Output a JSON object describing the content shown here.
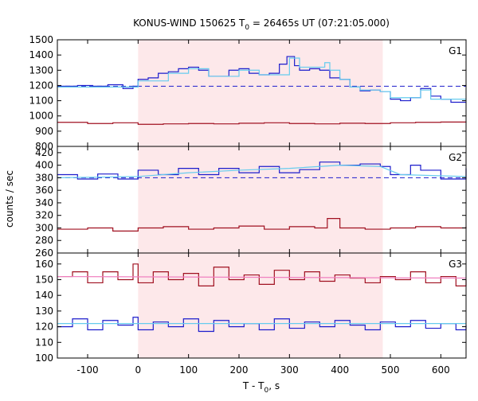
{
  "title": {
    "prefix": "KONUS-WIND 150625 T",
    "subscript": "0",
    "suffix": " = 26465s UT (07:21:05.000)"
  },
  "ylabel": "counts / sec",
  "xlabel": {
    "prefix": "T - T",
    "subscript": "0",
    "suffix": ", s"
  },
  "colors": {
    "blue": "#1c1ccc",
    "red": "#a01020",
    "cyan_fit": "#66ccee",
    "pink_fit": "#f080c0",
    "highlight": "#fde8ea"
  },
  "chart_data": {
    "type": "line",
    "x_range": [
      -160,
      650
    ],
    "x_ticks": [
      -100,
      0,
      100,
      200,
      300,
      400,
      500,
      600
    ],
    "highlight_interval": [
      0,
      485
    ],
    "panels": [
      {
        "label": "G1",
        "ylim": [
          800,
          1500
        ],
        "yticks": [
          800,
          900,
          1000,
          1100,
          1200,
          1300,
          1400,
          1500
        ],
        "background_level": 1195,
        "series": [
          {
            "color": "blue",
            "step": true,
            "points": [
              [
                -160,
                1195
              ],
              [
                -120,
                1200
              ],
              [
                -90,
                1195
              ],
              [
                -60,
                1205
              ],
              [
                -30,
                1180
              ],
              [
                -10,
                1195
              ],
              [
                0,
                1240
              ],
              [
                20,
                1250
              ],
              [
                40,
                1280
              ],
              [
                60,
                1290
              ],
              [
                80,
                1310
              ],
              [
                100,
                1320
              ],
              [
                120,
                1300
              ],
              [
                140,
                1260
              ],
              [
                160,
                1260
              ],
              [
                180,
                1300
              ],
              [
                200,
                1310
              ],
              [
                220,
                1280
              ],
              [
                240,
                1270
              ],
              [
                260,
                1280
              ],
              [
                280,
                1340
              ],
              [
                295,
                1390
              ],
              [
                310,
                1330
              ],
              [
                320,
                1300
              ],
              [
                340,
                1310
              ],
              [
                360,
                1300
              ],
              [
                380,
                1250
              ],
              [
                400,
                1240
              ],
              [
                420,
                1190
              ],
              [
                440,
                1165
              ],
              [
                460,
                1170
              ],
              [
                480,
                1160
              ],
              [
                500,
                1110
              ],
              [
                520,
                1100
              ],
              [
                540,
                1120
              ],
              [
                560,
                1180
              ],
              [
                580,
                1130
              ],
              [
                600,
                1110
              ],
              [
                620,
                1090
              ],
              [
                650,
                1090
              ]
            ]
          },
          {
            "color": "cyan_fit",
            "step": true,
            "points": [
              [
                -160,
                1190
              ],
              [
                -40,
                1190
              ],
              [
                0,
                1230
              ],
              [
                60,
                1280
              ],
              [
                100,
                1310
              ],
              [
                140,
                1260
              ],
              [
                200,
                1300
              ],
              [
                240,
                1270
              ],
              [
                300,
                1380
              ],
              [
                320,
                1320
              ],
              [
                370,
                1350
              ],
              [
                380,
                1300
              ],
              [
                400,
                1240
              ],
              [
                420,
                1190
              ],
              [
                440,
                1170
              ],
              [
                480,
                1160
              ],
              [
                500,
                1120
              ],
              [
                540,
                1120
              ],
              [
                560,
                1170
              ],
              [
                580,
                1110
              ],
              [
                650,
                1110
              ]
            ]
          },
          {
            "color": "red",
            "step": true,
            "points": [
              [
                -160,
                958
              ],
              [
                -100,
                950
              ],
              [
                -50,
                955
              ],
              [
                0,
                945
              ],
              [
                50,
                948
              ],
              [
                100,
                950
              ],
              [
                150,
                948
              ],
              [
                200,
                952
              ],
              [
                250,
                955
              ],
              [
                300,
                950
              ],
              [
                350,
                948
              ],
              [
                400,
                952
              ],
              [
                450,
                950
              ],
              [
                500,
                955
              ],
              [
                550,
                958
              ],
              [
                600,
                960
              ],
              [
                650,
                958
              ]
            ]
          }
        ]
      },
      {
        "label": "G2",
        "ylim": [
          260,
          430
        ],
        "yticks": [
          260,
          280,
          300,
          320,
          340,
          360,
          380,
          400,
          420
        ],
        "background_level": 380,
        "series": [
          {
            "color": "blue",
            "step": true,
            "points": [
              [
                -160,
                385
              ],
              [
                -120,
                378
              ],
              [
                -80,
                386
              ],
              [
                -40,
                378
              ],
              [
                0,
                392
              ],
              [
                40,
                385
              ],
              [
                80,
                395
              ],
              [
                120,
                385
              ],
              [
                160,
                395
              ],
              [
                200,
                388
              ],
              [
                240,
                398
              ],
              [
                280,
                388
              ],
              [
                320,
                393
              ],
              [
                360,
                405
              ],
              [
                400,
                400
              ],
              [
                440,
                402
              ],
              [
                480,
                398
              ],
              [
                500,
                385
              ],
              [
                540,
                400
              ],
              [
                560,
                392
              ],
              [
                600,
                378
              ],
              [
                650,
                395
              ]
            ]
          },
          {
            "color": "cyan_fit",
            "step": false,
            "points": [
              [
                -160,
                380
              ],
              [
                0,
                382
              ],
              [
                100,
                388
              ],
              [
                200,
                392
              ],
              [
                300,
                395
              ],
              [
                400,
                400
              ],
              [
                480,
                398
              ],
              [
                520,
                385
              ],
              [
                650,
                382
              ]
            ]
          },
          {
            "color": "red",
            "step": true,
            "points": [
              [
                -160,
                298
              ],
              [
                -100,
                300
              ],
              [
                -50,
                295
              ],
              [
                0,
                300
              ],
              [
                50,
                302
              ],
              [
                100,
                298
              ],
              [
                150,
                300
              ],
              [
                200,
                303
              ],
              [
                250,
                298
              ],
              [
                300,
                302
              ],
              [
                350,
                300
              ],
              [
                375,
                315
              ],
              [
                400,
                300
              ],
              [
                450,
                298
              ],
              [
                500,
                300
              ],
              [
                550,
                302
              ],
              [
                600,
                300
              ],
              [
                650,
                302
              ]
            ]
          }
        ]
      },
      {
        "label": "G3",
        "ylim": [
          100,
          167
        ],
        "yticks": [
          100,
          110,
          120,
          130,
          140,
          150,
          160
        ],
        "series": [
          {
            "color": "red",
            "step": true,
            "points": [
              [
                -160,
                152
              ],
              [
                -130,
                155
              ],
              [
                -100,
                148
              ],
              [
                -70,
                155
              ],
              [
                -40,
                150
              ],
              [
                -10,
                160
              ],
              [
                0,
                148
              ],
              [
                30,
                155
              ],
              [
                60,
                150
              ],
              [
                90,
                154
              ],
              [
                120,
                146
              ],
              [
                150,
                158
              ],
              [
                180,
                150
              ],
              [
                210,
                153
              ],
              [
                240,
                147
              ],
              [
                270,
                156
              ],
              [
                300,
                150
              ],
              [
                330,
                155
              ],
              [
                360,
                149
              ],
              [
                390,
                153
              ],
              [
                420,
                151
              ],
              [
                450,
                148
              ],
              [
                480,
                152
              ],
              [
                510,
                150
              ],
              [
                540,
                155
              ],
              [
                570,
                148
              ],
              [
                600,
                152
              ],
              [
                630,
                146
              ],
              [
                650,
                150
              ]
            ]
          },
          {
            "color": "pink_fit",
            "step": false,
            "points": [
              [
                -160,
                152
              ],
              [
                650,
                151
              ]
            ]
          },
          {
            "color": "blue",
            "step": true,
            "points": [
              [
                -160,
                120
              ],
              [
                -130,
                125
              ],
              [
                -100,
                118
              ],
              [
                -70,
                124
              ],
              [
                -40,
                121
              ],
              [
                -10,
                126
              ],
              [
                0,
                118
              ],
              [
                30,
                123
              ],
              [
                60,
                120
              ],
              [
                90,
                125
              ],
              [
                120,
                117
              ],
              [
                150,
                124
              ],
              [
                180,
                120
              ],
              [
                210,
                122
              ],
              [
                240,
                118
              ],
              [
                270,
                125
              ],
              [
                300,
                119
              ],
              [
                330,
                123
              ],
              [
                360,
                120
              ],
              [
                390,
                124
              ],
              [
                420,
                121
              ],
              [
                450,
                118
              ],
              [
                480,
                123
              ],
              [
                510,
                120
              ],
              [
                540,
                124
              ],
              [
                570,
                119
              ],
              [
                600,
                122
              ],
              [
                630,
                118
              ],
              [
                650,
                121
              ]
            ]
          },
          {
            "color": "cyan_fit",
            "step": false,
            "points": [
              [
                -160,
                122
              ],
              [
                650,
                122
              ]
            ]
          }
        ]
      }
    ]
  }
}
